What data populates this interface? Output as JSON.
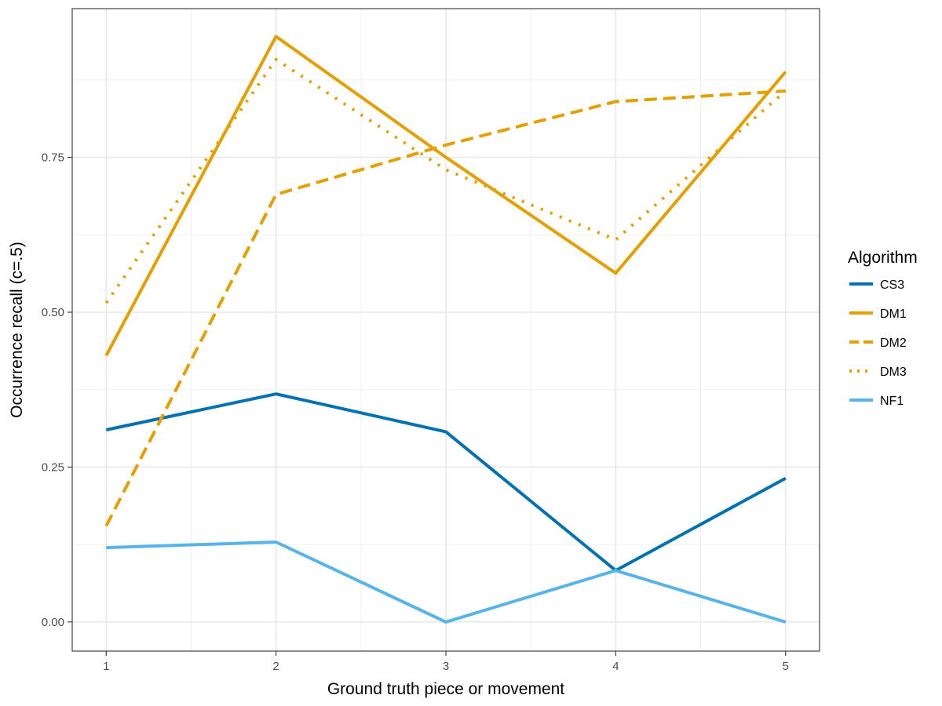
{
  "chart_data": {
    "type": "line",
    "xlabel": "Ground truth piece or movement",
    "ylabel": "Occurrence recall (c=.5)",
    "x": [
      1,
      2,
      3,
      4,
      5
    ],
    "xlim": [
      0.8,
      5.2
    ],
    "ylim": [
      -0.047,
      0.99
    ],
    "x_ticks": [
      "1",
      "2",
      "3",
      "4",
      "5"
    ],
    "y_ticks": [
      "0.00",
      "0.25",
      "0.50",
      "0.75"
    ],
    "y_tick_values": [
      0,
      0.25,
      0.5,
      0.75
    ],
    "grid": true,
    "legend": {
      "title": "Algorithm",
      "position": "right"
    },
    "series": [
      {
        "name": "CS3",
        "values": [
          0.31,
          0.368,
          0.307,
          0.083,
          0.232
        ],
        "color": "#0072B2",
        "dash": "solid"
      },
      {
        "name": "DM1",
        "values": [
          0.43,
          0.945,
          0.75,
          0.563,
          0.888
        ],
        "color": "#E69F00",
        "dash": "solid"
      },
      {
        "name": "DM2",
        "values": [
          0.155,
          0.69,
          0.77,
          0.84,
          0.857
        ],
        "color": "#E69F00",
        "dash": "dashed"
      },
      {
        "name": "DM3",
        "values": [
          0.515,
          0.908,
          0.73,
          0.617,
          0.857
        ],
        "color": "#E69F00",
        "dash": "dotted"
      },
      {
        "name": "NF1",
        "values": [
          0.12,
          0.129,
          0.0,
          0.083,
          0.0
        ],
        "color": "#56B4E9",
        "dash": "solid"
      }
    ]
  }
}
